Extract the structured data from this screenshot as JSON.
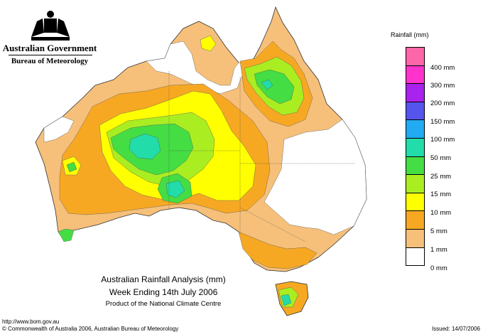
{
  "header": {
    "government": "Australian Government",
    "bureau": "Bureau of Meteorology"
  },
  "legend": {
    "title": "Rainfall (mm)",
    "items": [
      {
        "label": "",
        "color": "#ff66aa"
      },
      {
        "label": "400 mm",
        "color": "#ff33cc"
      },
      {
        "label": "300 mm",
        "color": "#aa22ee"
      },
      {
        "label": "200 mm",
        "color": "#5555ee"
      },
      {
        "label": "150 mm",
        "color": "#22aaf2"
      },
      {
        "label": "100 mm",
        "color": "#22ddaa"
      },
      {
        "label": "50 mm",
        "color": "#44dd44"
      },
      {
        "label": "25 mm",
        "color": "#aaee22"
      },
      {
        "label": "15 mm",
        "color": "#ffff00"
      },
      {
        "label": "10 mm",
        "color": "#f7a823"
      },
      {
        "label": "5 mm",
        "color": "#f6c07a"
      },
      {
        "label": "1 mm",
        "color": "#ffffff"
      },
      {
        "label": "0 mm",
        "color": ""
      }
    ]
  },
  "titles": {
    "line1": "Australian Rainfall Analysis (mm)",
    "line2": "Week Ending 14th July 2006",
    "line3": "Product of the National Climate Centre"
  },
  "footer": {
    "url": "http://www.bom.gov.au",
    "copyright": "© Commonwealth of Australia 2006, Australian Bureau of Meteorology",
    "issued": "Issued: 14/07/2006"
  }
}
